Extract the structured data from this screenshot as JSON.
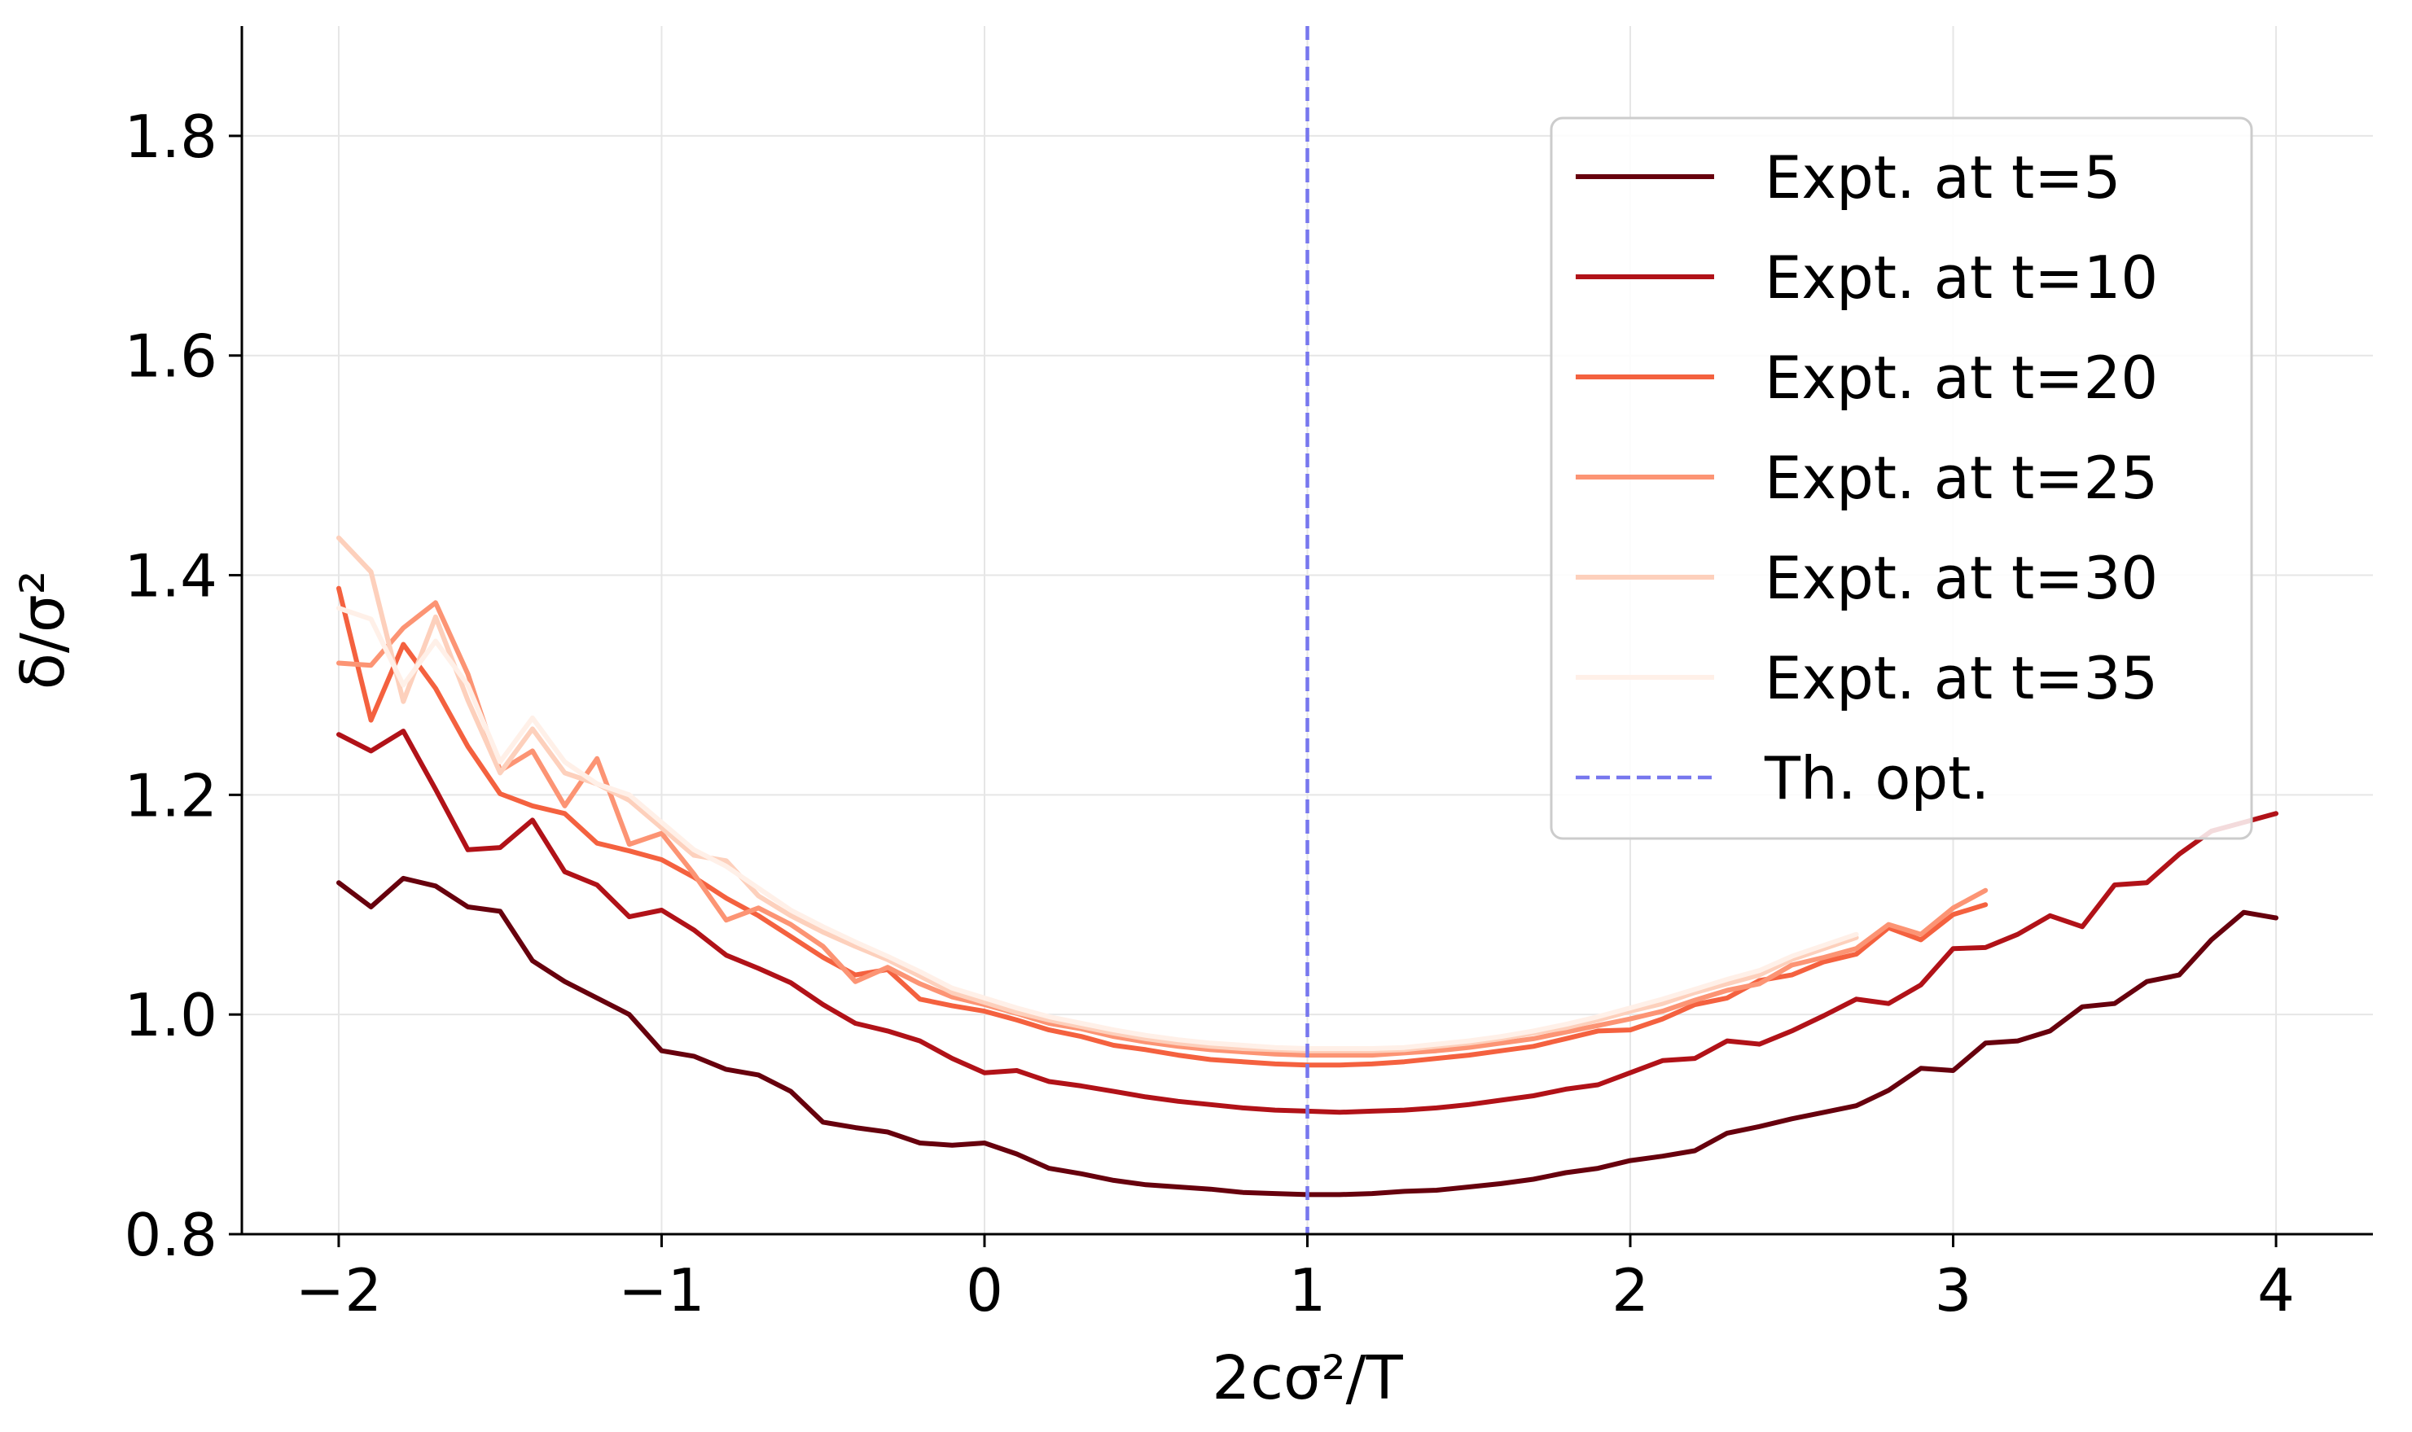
{
  "chart_data": {
    "type": "line",
    "title": "",
    "xlabel": "2cσ²/T",
    "ylabel": "δ/σ²",
    "xlim": [
      -2.3,
      4.3
    ],
    "ylim": [
      0.8,
      1.9
    ],
    "x_ticks": [
      -2,
      -1,
      0,
      1,
      2,
      3,
      4
    ],
    "x_tick_labels": [
      "−2",
      "−1",
      "0",
      "1",
      "2",
      "3",
      "4"
    ],
    "y_ticks": [
      0.8,
      1.0,
      1.2,
      1.4,
      1.6,
      1.8
    ],
    "y_tick_labels": [
      "0.8",
      "1.0",
      "1.2",
      "1.4",
      "1.6",
      "1.8"
    ],
    "grid": true,
    "legend_position": "top-right",
    "series": [
      {
        "name": "Expt. at t=5",
        "color": "#67000d",
        "x": [
          -2.0,
          -1.9,
          -1.8,
          -1.7,
          -1.6,
          -1.5,
          -1.4,
          -1.3,
          -1.2,
          -1.1,
          -1.0,
          -0.9,
          -0.8,
          -0.7,
          -0.6,
          -0.5,
          -0.4,
          -0.3,
          -0.2,
          -0.1,
          0.0,
          0.1,
          0.2,
          0.3,
          0.4,
          0.5,
          0.6,
          0.7,
          0.8,
          0.9,
          1.0,
          1.1,
          1.2,
          1.3,
          1.4,
          1.5,
          1.6,
          1.7,
          1.8,
          1.9,
          2.0,
          2.1,
          2.2,
          2.3,
          2.4,
          2.5,
          2.6,
          2.7,
          2.8,
          2.9,
          3.0,
          3.1,
          3.2,
          3.3,
          3.4,
          3.5,
          3.6,
          3.7,
          3.8,
          3.9,
          4.0
        ],
        "values": [
          1.12,
          1.098,
          1.124,
          1.117,
          1.098,
          1.094,
          1.049,
          1.03,
          1.015,
          1.0,
          0.967,
          0.962,
          0.95,
          0.945,
          0.93,
          0.902,
          0.897,
          0.893,
          0.883,
          0.881,
          0.883,
          0.873,
          0.86,
          0.855,
          0.849,
          0.845,
          0.843,
          0.841,
          0.838,
          0.837,
          0.836,
          0.836,
          0.837,
          0.839,
          0.84,
          0.843,
          0.846,
          0.85,
          0.856,
          0.86,
          0.867,
          0.871,
          0.876,
          0.892,
          0.898,
          0.905,
          0.911,
          0.917,
          0.931,
          0.951,
          0.949,
          0.974,
          0.976,
          0.985,
          1.007,
          1.01,
          1.03,
          1.036,
          1.068,
          1.093,
          1.088
        ]
      },
      {
        "name": "Expt. at t=10",
        "color": "#b11218",
        "x": [
          -2.0,
          -1.9,
          -1.8,
          -1.7,
          -1.6,
          -1.5,
          -1.4,
          -1.3,
          -1.2,
          -1.1,
          -1.0,
          -0.9,
          -0.8,
          -0.7,
          -0.6,
          -0.5,
          -0.4,
          -0.3,
          -0.2,
          -0.1,
          0.0,
          0.1,
          0.2,
          0.3,
          0.4,
          0.5,
          0.6,
          0.7,
          0.8,
          0.9,
          1.0,
          1.1,
          1.2,
          1.3,
          1.4,
          1.5,
          1.6,
          1.7,
          1.8,
          1.9,
          2.0,
          2.1,
          2.2,
          2.3,
          2.4,
          2.5,
          2.6,
          2.7,
          2.8,
          2.9,
          3.0,
          3.1,
          3.2,
          3.3,
          3.4,
          3.5,
          3.6,
          3.7,
          3.8,
          3.9,
          4.0
        ],
        "values": [
          1.255,
          1.24,
          1.258,
          1.205,
          1.15,
          1.152,
          1.177,
          1.13,
          1.118,
          1.089,
          1.095,
          1.077,
          1.054,
          1.042,
          1.029,
          1.009,
          0.992,
          0.985,
          0.976,
          0.96,
          0.947,
          0.949,
          0.939,
          0.935,
          0.93,
          0.925,
          0.921,
          0.918,
          0.915,
          0.913,
          0.912,
          0.911,
          0.912,
          0.913,
          0.915,
          0.918,
          0.922,
          0.926,
          0.932,
          0.936,
          0.947,
          0.958,
          0.96,
          0.976,
          0.973,
          0.985,
          0.999,
          1.014,
          1.01,
          1.027,
          1.06,
          1.061,
          1.073,
          1.09,
          1.08,
          1.118,
          1.12,
          1.146,
          1.167,
          1.175,
          1.183
        ]
      },
      {
        "name": "Expt. at t=20",
        "color": "#f4613f",
        "x": [
          -2.0,
          -1.9,
          -1.8,
          -1.7,
          -1.6,
          -1.5,
          -1.4,
          -1.3,
          -1.2,
          -1.1,
          -1.0,
          -0.9,
          -0.8,
          -0.7,
          -0.6,
          -0.5,
          -0.4,
          -0.3,
          -0.2,
          -0.1,
          0.0,
          0.1,
          0.2,
          0.3,
          0.4,
          0.5,
          0.6,
          0.7,
          0.8,
          0.9,
          1.0,
          1.1,
          1.2,
          1.3,
          1.4,
          1.5,
          1.6,
          1.7,
          1.8,
          1.9,
          2.0,
          2.1,
          2.2,
          2.3,
          2.4,
          2.5,
          2.6,
          2.7,
          2.8,
          2.9,
          3.0,
          3.1
        ],
        "values": [
          1.388,
          1.268,
          1.337,
          1.297,
          1.244,
          1.201,
          1.19,
          1.183,
          1.156,
          1.149,
          1.141,
          1.125,
          1.106,
          1.09,
          1.071,
          1.052,
          1.036,
          1.041,
          1.014,
          1.008,
          1.003,
          0.995,
          0.986,
          0.98,
          0.972,
          0.968,
          0.963,
          0.959,
          0.957,
          0.955,
          0.954,
          0.954,
          0.955,
          0.957,
          0.96,
          0.963,
          0.967,
          0.971,
          0.978,
          0.985,
          0.986,
          0.996,
          1.009,
          1.015,
          1.031,
          1.036,
          1.048,
          1.055,
          1.079,
          1.068,
          1.091,
          1.1
        ]
      },
      {
        "name": "Expt. at t=25",
        "color": "#fc9474",
        "x": [
          -2.0,
          -1.9,
          -1.8,
          -1.7,
          -1.6,
          -1.5,
          -1.4,
          -1.3,
          -1.2,
          -1.1,
          -1.0,
          -0.9,
          -0.8,
          -0.7,
          -0.6,
          -0.5,
          -0.4,
          -0.3,
          -0.2,
          -0.1,
          0.0,
          0.1,
          0.2,
          0.3,
          0.4,
          0.5,
          0.6,
          0.7,
          0.8,
          0.9,
          1.0,
          1.1,
          1.2,
          1.3,
          1.4,
          1.5,
          1.6,
          1.7,
          1.8,
          1.9,
          2.0,
          2.1,
          2.2,
          2.3,
          2.4,
          2.5,
          2.6,
          2.7,
          2.8,
          2.9,
          3.0,
          3.1
        ],
        "values": [
          1.32,
          1.318,
          1.352,
          1.375,
          1.31,
          1.222,
          1.24,
          1.19,
          1.233,
          1.155,
          1.165,
          1.128,
          1.086,
          1.097,
          1.082,
          1.062,
          1.03,
          1.043,
          1.028,
          1.016,
          1.009,
          1.001,
          0.992,
          0.987,
          0.98,
          0.975,
          0.971,
          0.968,
          0.966,
          0.964,
          0.963,
          0.963,
          0.963,
          0.965,
          0.967,
          0.97,
          0.974,
          0.978,
          0.984,
          0.99,
          0.996,
          1.003,
          1.013,
          1.022,
          1.028,
          1.045,
          1.052,
          1.06,
          1.082,
          1.073,
          1.097,
          1.113
        ]
      },
      {
        "name": "Expt. at t=30",
        "color": "#fdd0bc",
        "x": [
          -2.0,
          -1.9,
          -1.8,
          -1.7,
          -1.6,
          -1.5,
          -1.4,
          -1.3,
          -1.2,
          -1.1,
          -1.0,
          -0.9,
          -0.8,
          -0.7,
          -0.6,
          -0.5,
          -0.4,
          -0.3,
          -0.2,
          -0.1,
          0.0,
          0.1,
          0.2,
          0.3,
          0.4,
          0.5,
          0.6,
          0.7,
          0.8,
          0.9,
          1.0,
          1.1,
          1.2,
          1.3,
          1.4,
          1.5,
          1.6,
          1.7,
          1.8,
          1.9,
          2.0,
          2.1,
          2.2,
          2.3,
          2.4,
          2.5,
          2.6,
          2.7
        ],
        "values": [
          1.434,
          1.403,
          1.285,
          1.362,
          1.286,
          1.22,
          1.26,
          1.22,
          1.21,
          1.195,
          1.17,
          1.145,
          1.14,
          1.108,
          1.09,
          1.075,
          1.062,
          1.05,
          1.035,
          1.02,
          1.011,
          1.002,
          0.995,
          0.989,
          0.983,
          0.978,
          0.974,
          0.971,
          0.969,
          0.968,
          0.967,
          0.967,
          0.967,
          0.968,
          0.971,
          0.974,
          0.978,
          0.983,
          0.988,
          0.995,
          1.003,
          1.01,
          1.02,
          1.028,
          1.036,
          1.05,
          1.06,
          1.07
        ]
      },
      {
        "name": "Expt. at t=35",
        "color": "#fff0e8",
        "x": [
          -2.0,
          -1.9,
          -1.8,
          -1.7,
          -1.6,
          -1.5,
          -1.4,
          -1.3,
          -1.2,
          -1.1,
          -1.0,
          -0.9,
          -0.8,
          -0.7,
          -0.6,
          -0.5,
          -0.4,
          -0.3,
          -0.2,
          -0.1,
          0.0,
          0.1,
          0.2,
          0.3,
          0.4,
          0.5,
          0.6,
          0.7,
          0.8,
          0.9,
          1.0,
          1.1,
          1.2,
          1.3,
          1.4,
          1.5,
          1.6,
          1.7,
          1.8,
          1.9,
          2.0,
          2.1,
          2.2,
          2.3,
          2.4,
          2.5,
          2.6,
          2.7
        ],
        "values": [
          1.37,
          1.36,
          1.3,
          1.34,
          1.3,
          1.23,
          1.27,
          1.23,
          1.21,
          1.2,
          1.175,
          1.15,
          1.135,
          1.115,
          1.095,
          1.08,
          1.066,
          1.053,
          1.039,
          1.024,
          1.015,
          1.006,
          0.998,
          0.992,
          0.986,
          0.981,
          0.977,
          0.974,
          0.972,
          0.97,
          0.969,
          0.969,
          0.969,
          0.97,
          0.973,
          0.976,
          0.98,
          0.985,
          0.991,
          0.998,
          1.006,
          1.014,
          1.023,
          1.032,
          1.04,
          1.053,
          1.063,
          1.073
        ]
      }
    ],
    "reference_lines": [
      {
        "name": "Th. opt.",
        "orientation": "vertical",
        "x": 1.0,
        "color": "#7777ee",
        "style": "dashed"
      }
    ]
  }
}
